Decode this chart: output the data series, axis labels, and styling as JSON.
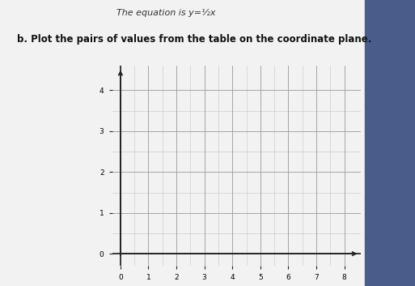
{
  "subtitle": "b. Plot the pairs of values from the table on the coordinate plane.",
  "xlim": [
    -0.5,
    8.5
  ],
  "ylim": [
    -0.5,
    4.5
  ],
  "xticks": [
    0,
    1,
    2,
    3,
    4,
    5,
    6,
    7,
    8
  ],
  "yticks": [
    0,
    1,
    2,
    3,
    4
  ],
  "grid_color": "#999999",
  "axis_color": "#222222",
  "paper_color": "#f2f2f2",
  "outer_color": "#6070a0",
  "fig_width": 5.13,
  "fig_height": 3.53,
  "dpi": 100
}
